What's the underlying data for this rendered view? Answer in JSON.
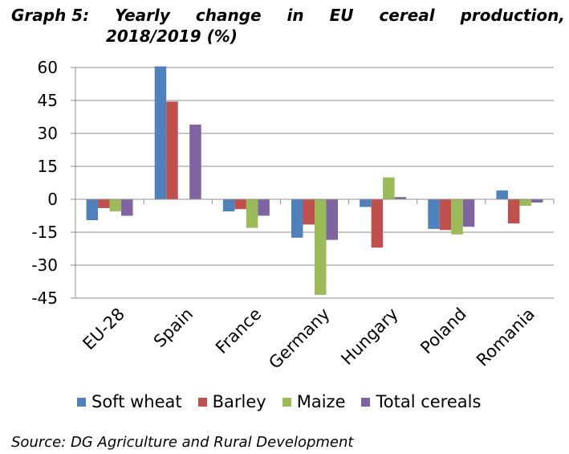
{
  "title": {
    "words": [
      "Graph 5:",
      "Yearly",
      "change",
      "in",
      "EU",
      "cereal",
      "production,"
    ],
    "line2": "2018/2019 (%)"
  },
  "source": "Source: DG Agriculture and Rural Development",
  "chart_data": {
    "type": "bar",
    "categories": [
      "EU-28",
      "Spain",
      "France",
      "Germany",
      "Hungary",
      "Poland",
      "Romania"
    ],
    "series": [
      {
        "name": "Soft wheat",
        "color": "#4f81bd",
        "values": [
          -9.5,
          60.5,
          -5.5,
          -17.5,
          -3.5,
          -13.5,
          4
        ]
      },
      {
        "name": "Barley",
        "color": "#c0504d",
        "values": [
          -4,
          44.5,
          -4.5,
          -11.5,
          -22,
          -14,
          -11
        ]
      },
      {
        "name": "Maize",
        "color": "#9bbb59",
        "values": [
          -5.5,
          0,
          -13,
          -43.5,
          10,
          -16,
          -3
        ]
      },
      {
        "name": "Total cereals",
        "color": "#8064a2",
        "values": [
          -7.5,
          34,
          -7.5,
          -18.5,
          1,
          -12.5,
          -1.5
        ]
      }
    ],
    "yticks": [
      60,
      45,
      30,
      15,
      0,
      -15,
      -30,
      -45
    ],
    "ylim": [
      -45,
      60
    ],
    "grid": true,
    "legend": "bottom"
  }
}
